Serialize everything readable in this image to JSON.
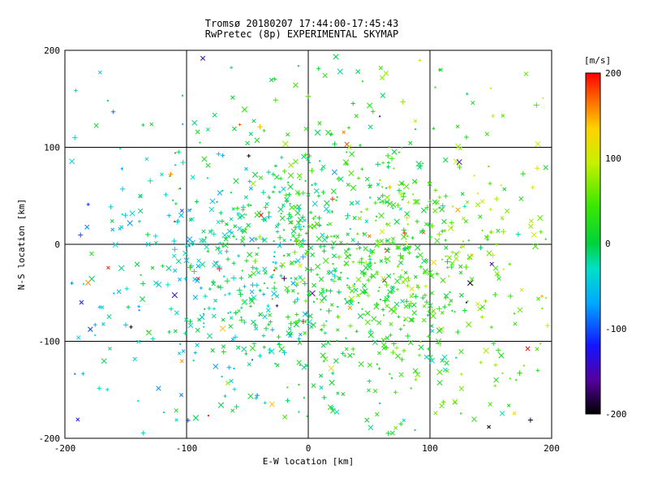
{
  "chart_data": {
    "type": "scatter",
    "title": "Tromsø 20180207 17:44:00-17:45:43",
    "subtitle": "RwPretec (8p) EXPERIMENTAL SKYMAP",
    "xlabel": "E-W location [km]",
    "ylabel": "N-S location [km]",
    "xlim": [
      -200,
      200
    ],
    "ylim": [
      -200,
      200
    ],
    "xticks": [
      -200,
      -100,
      0,
      100,
      200
    ],
    "yticks": [
      -200,
      -100,
      0,
      100,
      200
    ],
    "grid": true,
    "grid_color": "#000000",
    "frame_color": "#000000",
    "background": "#ffffff",
    "markers": [
      "x",
      "+",
      "."
    ],
    "colorbar": {
      "label": "[m/s]",
      "min": -200,
      "max": 200,
      "ticks": [
        200,
        100,
        0,
        -100,
        -200
      ],
      "stops": [
        [
          -200,
          "#000000"
        ],
        [
          -160,
          "#55009e"
        ],
        [
          -120,
          "#1414ff"
        ],
        [
          -70,
          "#00a8ff"
        ],
        [
          -30,
          "#00e0c8"
        ],
        [
          0,
          "#00d23c"
        ],
        [
          45,
          "#3ce800"
        ],
        [
          95,
          "#c8f000"
        ],
        [
          135,
          "#ffd200"
        ],
        [
          170,
          "#ff6400"
        ],
        [
          200,
          "#ff0000"
        ]
      ]
    },
    "point_cloud": {
      "description": "Dense cloud of radar echo velocity markers, mostly cyan-to-green (velocities near 0 m/s), cyan dominant on the west side, green/yellow-green on the east, with sparse red (+~150..200 m/s) and dark blue/black (-150..-200 m/s) outliers toward the edges",
      "seed": 20180207,
      "count": 1250,
      "cluster_center": [
        15,
        -15
      ],
      "cluster_sigma": [
        85,
        72
      ],
      "uniform_fraction": 0.16,
      "velocity_model": {
        "base": 10,
        "x_gain": 0.3,
        "y_gain": 0.05,
        "noise_sigma": 32
      },
      "outlier_fraction": 0.04,
      "outlier_speed_min": 130,
      "outlier_speed_span": 70
    }
  }
}
